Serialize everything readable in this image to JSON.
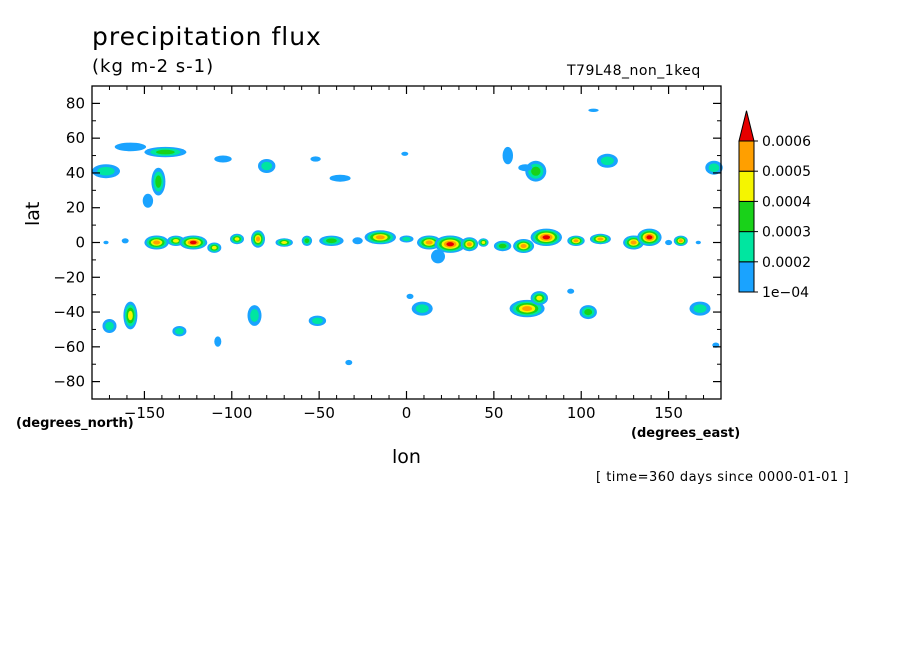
{
  "chart_data": {
    "type": "heatmap",
    "title": "precipitation flux",
    "units": "(kg m-2 s-1)",
    "run_name": "T79L48_non_1keq",
    "xlabel": "lon",
    "ylabel": "lat",
    "x_units": "(degrees_east)",
    "y_units": "(degrees_north)",
    "time_info": "[ time=360 days since 0000-01-01 ]",
    "xlim": [
      -180,
      180
    ],
    "ylim": [
      -90,
      90
    ],
    "x_ticks": [
      -150,
      -100,
      -50,
      0,
      50,
      100,
      150
    ],
    "x_tick_labels": [
      "−150",
      "−100",
      "−50",
      "0",
      "50",
      "100",
      "150"
    ],
    "y_ticks": [
      80,
      60,
      40,
      20,
      0,
      -20,
      -40,
      -60,
      -80
    ],
    "y_tick_labels": [
      "80",
      "60",
      "40",
      "20",
      "0",
      "−20",
      "−40",
      "−60",
      "−80"
    ],
    "colorbar": {
      "levels": [
        0.0001,
        0.0002,
        0.0003,
        0.0004,
        0.0005,
        0.0006
      ],
      "labels": [
        "1e−04",
        "0.0002",
        "0.0003",
        "0.0004",
        "0.0005",
        "0.0006"
      ],
      "colors": [
        "#1aa3ff",
        "#00e6a0",
        "#19d219",
        "#f5f500",
        "#ff9f00",
        "#e60000"
      ],
      "extend": "max"
    },
    "features": [
      {
        "lon": -172,
        "lat": 41,
        "rx": 8,
        "ry": 4,
        "level": 2
      },
      {
        "lon": -158,
        "lat": 55,
        "rx": 9,
        "ry": 2.5,
        "level": 1
      },
      {
        "lon": -138,
        "lat": 52,
        "rx": 12,
        "ry": 3,
        "level": 3
      },
      {
        "lon": -142,
        "lat": 35,
        "rx": 4,
        "ry": 8,
        "level": 3
      },
      {
        "lon": -148,
        "lat": 24,
        "rx": 3,
        "ry": 4,
        "level": 1
      },
      {
        "lon": -105,
        "lat": 48,
        "rx": 5,
        "ry": 2,
        "level": 1
      },
      {
        "lon": -80,
        "lat": 44,
        "rx": 5,
        "ry": 4,
        "level": 2
      },
      {
        "lon": -52,
        "lat": 48,
        "rx": 3,
        "ry": 1.5,
        "level": 1
      },
      {
        "lon": -38,
        "lat": 37,
        "rx": 6,
        "ry": 2,
        "level": 1
      },
      {
        "lon": -1,
        "lat": 51,
        "rx": 2,
        "ry": 1.2,
        "level": 1
      },
      {
        "lon": 58,
        "lat": 50,
        "rx": 3,
        "ry": 5,
        "level": 1
      },
      {
        "lon": 74,
        "lat": 41,
        "rx": 6,
        "ry": 6,
        "level": 3
      },
      {
        "lon": 68,
        "lat": 43,
        "rx": 4,
        "ry": 2,
        "level": 1
      },
      {
        "lon": 115,
        "lat": 47,
        "rx": 6,
        "ry": 4,
        "level": 2
      },
      {
        "lon": 107,
        "lat": 76,
        "rx": 3,
        "ry": 1,
        "level": 1
      },
      {
        "lon": 176,
        "lat": 43,
        "rx": 5,
        "ry": 4,
        "level": 2
      },
      {
        "lon": -172,
        "lat": 0,
        "rx": 1.5,
        "ry": 1,
        "level": 1
      },
      {
        "lon": -161,
        "lat": 1,
        "rx": 2,
        "ry": 1.5,
        "level": 1
      },
      {
        "lon": -143,
        "lat": 0,
        "rx": 7,
        "ry": 4,
        "level": 5
      },
      {
        "lon": -132,
        "lat": 1,
        "rx": 5,
        "ry": 3,
        "level": 4
      },
      {
        "lon": -122,
        "lat": 0,
        "rx": 8,
        "ry": 4,
        "level": 6
      },
      {
        "lon": -110,
        "lat": -3,
        "rx": 4,
        "ry": 3,
        "level": 4
      },
      {
        "lon": -97,
        "lat": 2,
        "rx": 4,
        "ry": 3,
        "level": 4
      },
      {
        "lon": -85,
        "lat": 2,
        "rx": 4,
        "ry": 5,
        "level": 5
      },
      {
        "lon": -70,
        "lat": 0,
        "rx": 5,
        "ry": 2.5,
        "level": 4
      },
      {
        "lon": -57,
        "lat": 1,
        "rx": 3,
        "ry": 3,
        "level": 3
      },
      {
        "lon": -43,
        "lat": 1,
        "rx": 7,
        "ry": 3,
        "level": 3
      },
      {
        "lon": -28,
        "lat": 1,
        "rx": 3,
        "ry": 2,
        "level": 1
      },
      {
        "lon": -15,
        "lat": 3,
        "rx": 9,
        "ry": 4,
        "level": 5
      },
      {
        "lon": 0,
        "lat": 2,
        "rx": 4,
        "ry": 2,
        "level": 2
      },
      {
        "lon": 13,
        "lat": 0,
        "rx": 7,
        "ry": 4,
        "level": 5
      },
      {
        "lon": 25,
        "lat": -1,
        "rx": 9,
        "ry": 5,
        "level": 6
      },
      {
        "lon": 18,
        "lat": -8,
        "rx": 4,
        "ry": 4,
        "level": 1
      },
      {
        "lon": 36,
        "lat": -1,
        "rx": 5,
        "ry": 4,
        "level": 5
      },
      {
        "lon": 44,
        "lat": 0,
        "rx": 3,
        "ry": 2.5,
        "level": 4
      },
      {
        "lon": 55,
        "lat": -2,
        "rx": 5,
        "ry": 3,
        "level": 3
      },
      {
        "lon": 67,
        "lat": -2,
        "rx": 6,
        "ry": 4,
        "level": 5
      },
      {
        "lon": 80,
        "lat": 3,
        "rx": 9,
        "ry": 5,
        "level": 6
      },
      {
        "lon": 97,
        "lat": 1,
        "rx": 5,
        "ry": 3,
        "level": 5
      },
      {
        "lon": 111,
        "lat": 2,
        "rx": 6,
        "ry": 3,
        "level": 5
      },
      {
        "lon": 130,
        "lat": 0,
        "rx": 6,
        "ry": 4,
        "level": 5
      },
      {
        "lon": 139,
        "lat": 3,
        "rx": 7,
        "ry": 5,
        "level": 6
      },
      {
        "lon": 150,
        "lat": 0,
        "rx": 2,
        "ry": 1.5,
        "level": 1
      },
      {
        "lon": 157,
        "lat": 1,
        "rx": 4,
        "ry": 3,
        "level": 5
      },
      {
        "lon": 167,
        "lat": 0,
        "rx": 1.5,
        "ry": 1,
        "level": 1
      },
      {
        "lon": -170,
        "lat": -48,
        "rx": 4,
        "ry": 4,
        "level": 2
      },
      {
        "lon": -158,
        "lat": -42,
        "rx": 4,
        "ry": 8,
        "level": 4
      },
      {
        "lon": -130,
        "lat": -51,
        "rx": 4,
        "ry": 3,
        "level": 2
      },
      {
        "lon": -108,
        "lat": -57,
        "rx": 2,
        "ry": 3,
        "level": 1
      },
      {
        "lon": -87,
        "lat": -42,
        "rx": 4,
        "ry": 6,
        "level": 2
      },
      {
        "lon": -51,
        "lat": -45,
        "rx": 5,
        "ry": 3,
        "level": 2
      },
      {
        "lon": -33,
        "lat": -69,
        "rx": 2,
        "ry": 1.5,
        "level": 1
      },
      {
        "lon": 2,
        "lat": -31,
        "rx": 2,
        "ry": 1.5,
        "level": 1
      },
      {
        "lon": 9,
        "lat": -38,
        "rx": 6,
        "ry": 4,
        "level": 2
      },
      {
        "lon": 69,
        "lat": -38,
        "rx": 10,
        "ry": 5,
        "level": 5
      },
      {
        "lon": 76,
        "lat": -32,
        "rx": 5,
        "ry": 4,
        "level": 4
      },
      {
        "lon": 94,
        "lat": -28,
        "rx": 2,
        "ry": 1.5,
        "level": 1
      },
      {
        "lon": 104,
        "lat": -40,
        "rx": 5,
        "ry": 4,
        "level": 3
      },
      {
        "lon": 168,
        "lat": -38,
        "rx": 6,
        "ry": 4,
        "level": 2
      },
      {
        "lon": 177,
        "lat": -59,
        "rx": 2,
        "ry": 1.5,
        "level": 1
      }
    ]
  }
}
